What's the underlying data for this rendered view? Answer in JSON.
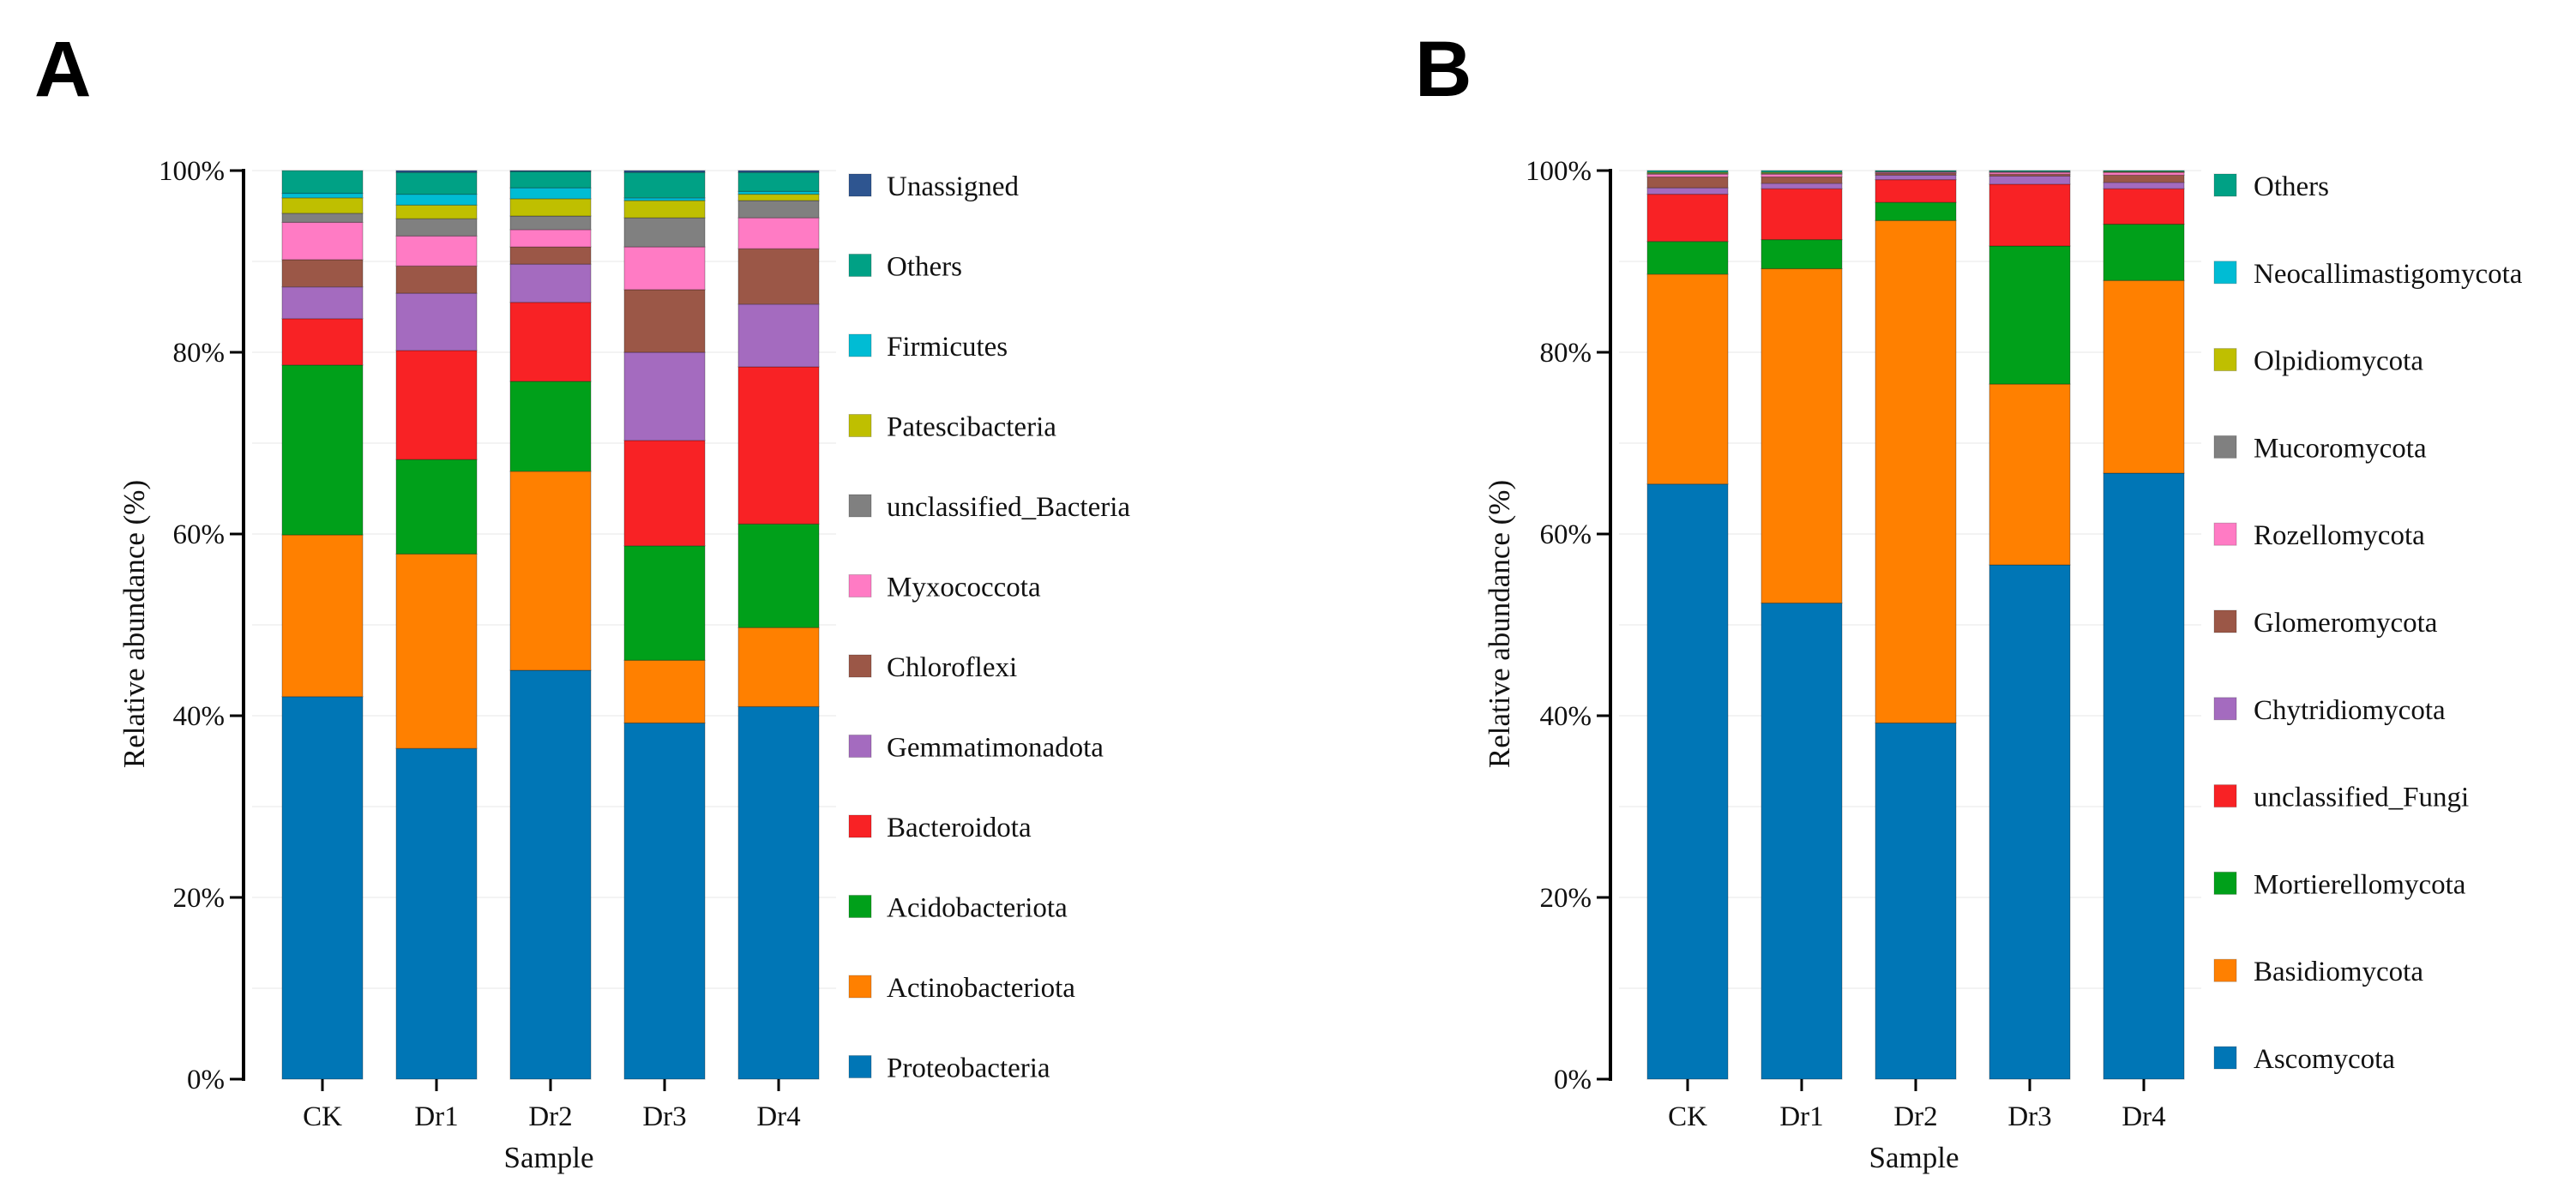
{
  "chart_data": [
    {
      "type": "bar",
      "stacked": true,
      "panel_label": "A",
      "title": "",
      "xlabel": "Sample",
      "ylabel": "Relative abundance (%)",
      "ylim": [
        0,
        100
      ],
      "yticks": [
        "0%",
        "20%",
        "40%",
        "60%",
        "80%",
        "100%"
      ],
      "categories": [
        "CK",
        "Dr1",
        "Dr2",
        "Dr3",
        "Dr4"
      ],
      "legend_position": "right",
      "series": [
        {
          "name": "Proteobacteria",
          "color": "#0076b6",
          "values": [
            42.1,
            36.4,
            45.0,
            39.2,
            41.0
          ]
        },
        {
          "name": "Actinobacteriota",
          "color": "#ff8000",
          "values": [
            17.8,
            21.4,
            21.9,
            6.9,
            8.7
          ]
        },
        {
          "name": "Acidobacteriota",
          "color": "#00a01a",
          "values": [
            18.7,
            10.4,
            9.9,
            12.6,
            11.4
          ]
        },
        {
          "name": "Bacteroidota",
          "color": "#f82225",
          "values": [
            5.1,
            12.0,
            8.7,
            11.6,
            17.3
          ]
        },
        {
          "name": "Gemmatimonadota",
          "color": "#a46bbf",
          "values": [
            3.5,
            6.3,
            4.2,
            9.7,
            6.9
          ]
        },
        {
          "name": "Chloroflexi",
          "color": "#9b5747",
          "values": [
            3.0,
            3.0,
            1.9,
            6.9,
            6.1
          ]
        },
        {
          "name": "Myxococcota",
          "color": "#ff7bc4",
          "values": [
            4.1,
            3.3,
            1.9,
            4.7,
            3.4
          ]
        },
        {
          "name": "unclassified_Bacteria",
          "color": "#808080",
          "values": [
            1.0,
            1.9,
            1.5,
            3.2,
            1.9
          ]
        },
        {
          "name": "Patescibacteria",
          "color": "#bfbf00",
          "values": [
            1.7,
            1.5,
            1.9,
            1.9,
            0.7
          ]
        },
        {
          "name": "Firmicutes",
          "color": "#00bcd4",
          "values": [
            0.5,
            1.2,
            1.2,
            0.3,
            0.3
          ]
        },
        {
          "name": "Others",
          "color": "#00a185",
          "values": [
            2.5,
            2.4,
            1.8,
            2.8,
            2.1
          ]
        },
        {
          "name": "Unassigned",
          "color": "#2e5590",
          "values": [
            0.0,
            0.2,
            0.1,
            0.2,
            0.2
          ]
        }
      ]
    },
    {
      "type": "bar",
      "stacked": true,
      "panel_label": "B",
      "title": "",
      "xlabel": "Sample",
      "ylabel": "Relative abundance (%)",
      "ylim": [
        0,
        100
      ],
      "yticks": [
        "0%",
        "20%",
        "40%",
        "60%",
        "80%",
        "100%"
      ],
      "categories": [
        "CK",
        "Dr1",
        "Dr2",
        "Dr3",
        "Dr4"
      ],
      "legend_position": "right",
      "series": [
        {
          "name": "Ascomycota",
          "color": "#0076b6",
          "values": [
            65.5,
            52.4,
            39.2,
            56.6,
            66.7
          ]
        },
        {
          "name": "Basidiomycota",
          "color": "#ff8000",
          "values": [
            23.1,
            36.8,
            55.3,
            19.9,
            21.2
          ]
        },
        {
          "name": "Mortierellomycota",
          "color": "#00a01a",
          "values": [
            3.6,
            3.2,
            2.0,
            15.2,
            6.2
          ]
        },
        {
          "name": "unclassified_Fungi",
          "color": "#f82225",
          "values": [
            5.2,
            5.6,
            2.5,
            6.8,
            3.9
          ]
        },
        {
          "name": "Chytridiomycota",
          "color": "#a46bbf",
          "values": [
            0.7,
            0.6,
            0.5,
            0.9,
            0.7
          ]
        },
        {
          "name": "Glomeromycota",
          "color": "#9b5747",
          "values": [
            1.2,
            0.7,
            0.2,
            0.2,
            0.8
          ]
        },
        {
          "name": "Rozellomycota",
          "color": "#ff7bc4",
          "values": [
            0.3,
            0.3,
            0.1,
            0.2,
            0.3
          ]
        },
        {
          "name": "Mucoromycota",
          "color": "#808080",
          "values": [
            0.1,
            0.1,
            0.1,
            0.1,
            0.05
          ]
        },
        {
          "name": "Olpidiomycota",
          "color": "#bfbf00",
          "values": [
            0.1,
            0.1,
            0.0,
            0.0,
            0.05
          ]
        },
        {
          "name": "Neocallimastigomycota",
          "color": "#00bcd4",
          "values": [
            0.0,
            0.0,
            0.0,
            0.0,
            0.0
          ]
        },
        {
          "name": "Others",
          "color": "#00a185",
          "values": [
            0.2,
            0.2,
            0.1,
            0.1,
            0.1
          ]
        }
      ]
    }
  ]
}
